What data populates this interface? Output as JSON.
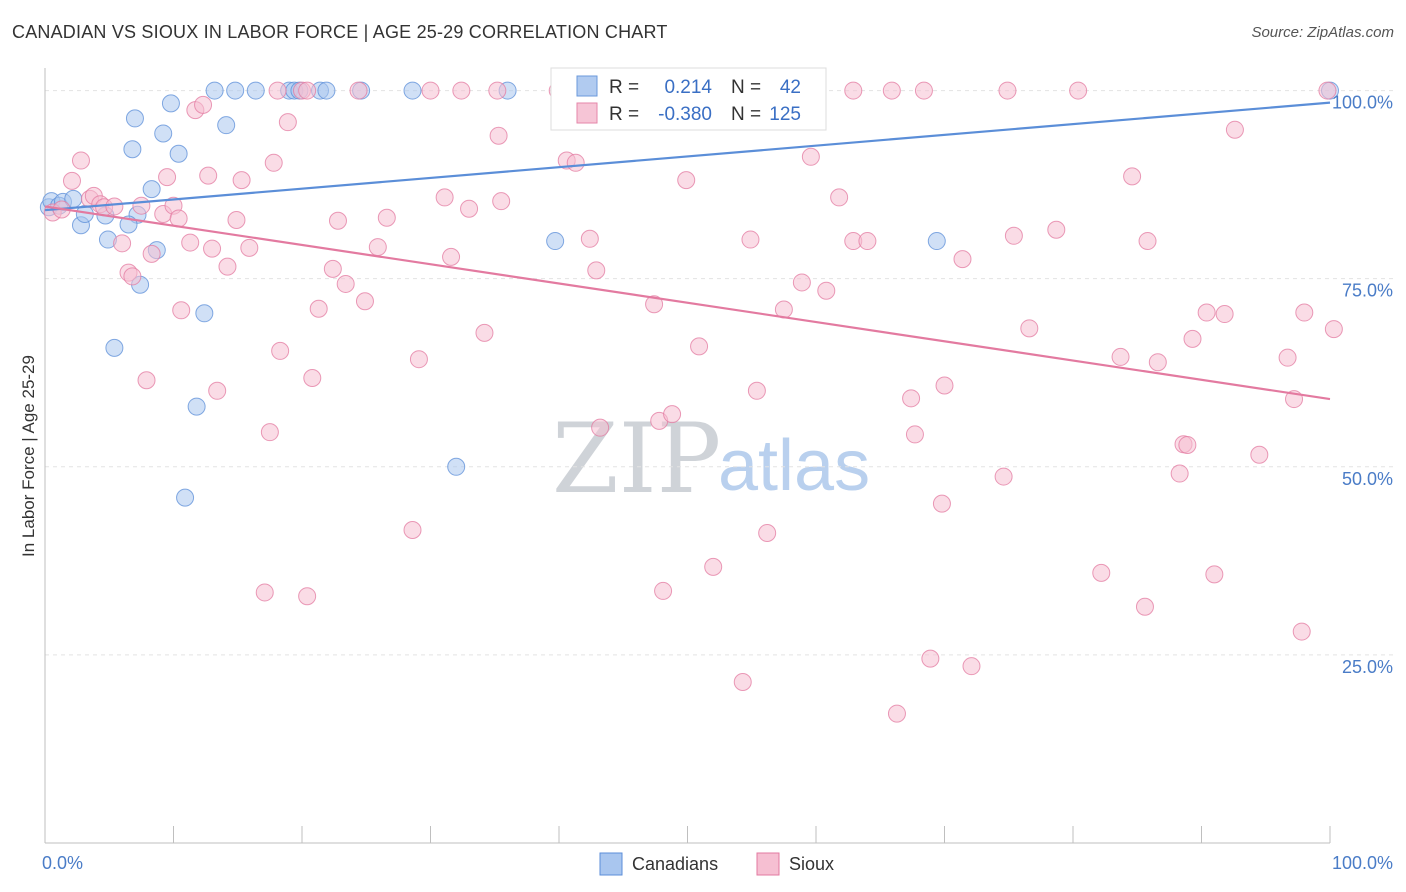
{
  "title": "CANADIAN VS SIOUX IN LABOR FORCE | AGE 25-29 CORRELATION CHART",
  "source": "Source: ZipAtlas.com",
  "watermark": {
    "zip": "ZIP",
    "atlas": "atlas"
  },
  "chart_data": {
    "type": "scatter",
    "xlabel": "",
    "ylabel": "In Labor Force | Age 25-29",
    "xlim": [
      0,
      100
    ],
    "ylim": [
      0,
      103
    ],
    "x_tick_labels": {
      "min": "0.0%",
      "max": "100.0%"
    },
    "y_ticks": [
      {
        "value": 100,
        "label": "100.0%"
      },
      {
        "value": 75,
        "label": "75.0%"
      },
      {
        "value": 50,
        "label": "50.0%"
      },
      {
        "value": 25,
        "label": "25.0%"
      }
    ],
    "grid": true,
    "legend_position": "bottom",
    "stats": {
      "r_label": "R =",
      "n_label": "N =",
      "canadians": {
        "r": "0.214",
        "n": "42"
      },
      "sioux": {
        "r": "-0.380",
        "n": "125"
      }
    },
    "series": [
      {
        "name": "Canadians",
        "color": "#5b8ed8",
        "fill": "#a9c6ef",
        "trend": {
          "x": [
            0,
            100
          ],
          "y": [
            84.1,
            98.4
          ]
        },
        "points": [
          [
            0.3,
            84.5
          ],
          [
            0.5,
            85.3
          ],
          [
            1.1,
            84.7
          ],
          [
            1.4,
            85.2
          ],
          [
            2.2,
            85.6
          ],
          [
            2.8,
            82.1
          ],
          [
            3.1,
            83.6
          ],
          [
            4.7,
            83.4
          ],
          [
            7.2,
            83.5
          ],
          [
            7.4,
            74.2
          ],
          [
            4.9,
            80.2
          ],
          [
            5.4,
            65.8
          ],
          [
            6.5,
            82.2
          ],
          [
            6.8,
            92.2
          ],
          [
            7.0,
            96.3
          ],
          [
            8.3,
            86.9
          ],
          [
            8.7,
            78.8
          ],
          [
            9.2,
            94.3
          ],
          [
            9.8,
            98.3
          ],
          [
            10.4,
            91.6
          ],
          [
            10.9,
            45.9
          ],
          [
            11.8,
            58.0
          ],
          [
            12.4,
            70.4
          ],
          [
            13.2,
            100
          ],
          [
            14.1,
            95.4
          ],
          [
            14.8,
            100
          ],
          [
            16.4,
            100
          ],
          [
            19.0,
            100
          ],
          [
            19.4,
            100
          ],
          [
            19.8,
            100
          ],
          [
            21.4,
            100
          ],
          [
            21.9,
            100
          ],
          [
            24.6,
            100
          ],
          [
            28.6,
            100
          ],
          [
            32.0,
            50.0
          ],
          [
            36.0,
            100
          ],
          [
            39.7,
            80.0
          ],
          [
            41.1,
            100
          ],
          [
            48.6,
            100
          ],
          [
            55.4,
            100
          ],
          [
            69.4,
            80.0
          ],
          [
            100,
            100
          ]
        ]
      },
      {
        "name": "Sioux",
        "color": "#e37aa0",
        "fill": "#f6bfd2",
        "trend": {
          "x": [
            0,
            100
          ],
          "y": [
            84.6,
            59.0
          ]
        },
        "points": [
          [
            0.6,
            83.8
          ],
          [
            1.3,
            84.2
          ],
          [
            2.1,
            88.0
          ],
          [
            2.8,
            90.7
          ],
          [
            3.5,
            85.6
          ],
          [
            3.8,
            86.0
          ],
          [
            4.3,
            84.9
          ],
          [
            4.6,
            84.5
          ],
          [
            5.4,
            84.6
          ],
          [
            6.0,
            79.7
          ],
          [
            6.5,
            75.8
          ],
          [
            6.8,
            75.3
          ],
          [
            7.5,
            84.7
          ],
          [
            7.9,
            61.5
          ],
          [
            8.3,
            78.3
          ],
          [
            9.2,
            83.6
          ],
          [
            9.5,
            88.5
          ],
          [
            10.0,
            84.7
          ],
          [
            10.4,
            83.0
          ],
          [
            10.6,
            70.8
          ],
          [
            11.3,
            79.8
          ],
          [
            11.7,
            97.4
          ],
          [
            12.3,
            98.1
          ],
          [
            12.7,
            88.7
          ],
          [
            13.0,
            79.0
          ],
          [
            13.4,
            60.1
          ],
          [
            14.2,
            76.6
          ],
          [
            14.9,
            82.8
          ],
          [
            15.3,
            88.1
          ],
          [
            15.9,
            79.1
          ],
          [
            17.1,
            33.3
          ],
          [
            17.5,
            54.6
          ],
          [
            17.8,
            90.4
          ],
          [
            18.3,
            65.4
          ],
          [
            18.9,
            95.8
          ],
          [
            20.0,
            100
          ],
          [
            20.4,
            32.8
          ],
          [
            20.8,
            61.8
          ],
          [
            21.3,
            71.0
          ],
          [
            22.4,
            76.3
          ],
          [
            22.8,
            82.7
          ],
          [
            23.4,
            74.3
          ],
          [
            24.9,
            72.0
          ],
          [
            25.9,
            79.2
          ],
          [
            26.6,
            83.1
          ],
          [
            28.6,
            41.6
          ],
          [
            29.1,
            64.3
          ],
          [
            30.0,
            100
          ],
          [
            31.1,
            85.8
          ],
          [
            31.6,
            77.9
          ],
          [
            32.4,
            100
          ],
          [
            33.0,
            84.3
          ],
          [
            34.2,
            67.8
          ],
          [
            35.2,
            100
          ],
          [
            35.3,
            94.0
          ],
          [
            35.5,
            85.3
          ],
          [
            40.6,
            90.7
          ],
          [
            41.3,
            90.4
          ],
          [
            42.4,
            80.3
          ],
          [
            42.9,
            76.1
          ],
          [
            43.2,
            55.2
          ],
          [
            47.4,
            71.6
          ],
          [
            47.8,
            56.1
          ],
          [
            48.8,
            57.0
          ],
          [
            49.9,
            88.1
          ],
          [
            50.9,
            66.0
          ],
          [
            52.0,
            36.7
          ],
          [
            54.3,
            21.4
          ],
          [
            54.9,
            80.2
          ],
          [
            55.4,
            60.1
          ],
          [
            56.2,
            41.2
          ],
          [
            57.5,
            70.9
          ],
          [
            58.9,
            74.5
          ],
          [
            59.6,
            91.2
          ],
          [
            60.8,
            73.4
          ],
          [
            61.8,
            85.8
          ],
          [
            62.9,
            80.0
          ],
          [
            64.0,
            80.0
          ],
          [
            66.3,
            17.2
          ],
          [
            67.4,
            59.1
          ],
          [
            67.7,
            54.3
          ],
          [
            68.4,
            100
          ],
          [
            68.9,
            24.5
          ],
          [
            69.8,
            45.1
          ],
          [
            70.0,
            60.8
          ],
          [
            71.4,
            77.6
          ],
          [
            72.1,
            23.5
          ],
          [
            74.6,
            48.7
          ],
          [
            75.4,
            80.7
          ],
          [
            76.6,
            68.4
          ],
          [
            78.7,
            81.5
          ],
          [
            80.4,
            100
          ],
          [
            82.2,
            35.9
          ],
          [
            83.7,
            64.6
          ],
          [
            84.6,
            88.6
          ],
          [
            85.6,
            31.4
          ],
          [
            85.8,
            80.0
          ],
          [
            86.6,
            63.9
          ],
          [
            88.3,
            49.1
          ],
          [
            88.6,
            53.0
          ],
          [
            88.9,
            52.9
          ],
          [
            89.3,
            67.0
          ],
          [
            90.4,
            70.5
          ],
          [
            91.0,
            35.7
          ],
          [
            91.8,
            70.3
          ],
          [
            92.6,
            94.8
          ],
          [
            94.5,
            51.6
          ],
          [
            96.7,
            64.5
          ],
          [
            97.2,
            59.0
          ],
          [
            97.8,
            28.1
          ],
          [
            98.0,
            70.5
          ],
          [
            100.3,
            68.3
          ],
          [
            99.8,
            100
          ],
          [
            55.9,
            100
          ],
          [
            39.9,
            100
          ],
          [
            42.8,
            100
          ],
          [
            59.9,
            100
          ],
          [
            62.9,
            100
          ],
          [
            65.9,
            100
          ],
          [
            74.9,
            100
          ],
          [
            18.1,
            100
          ],
          [
            20.4,
            100
          ],
          [
            24.4,
            100
          ],
          [
            44.9,
            100
          ],
          [
            48.1,
            33.5
          ]
        ]
      }
    ]
  }
}
